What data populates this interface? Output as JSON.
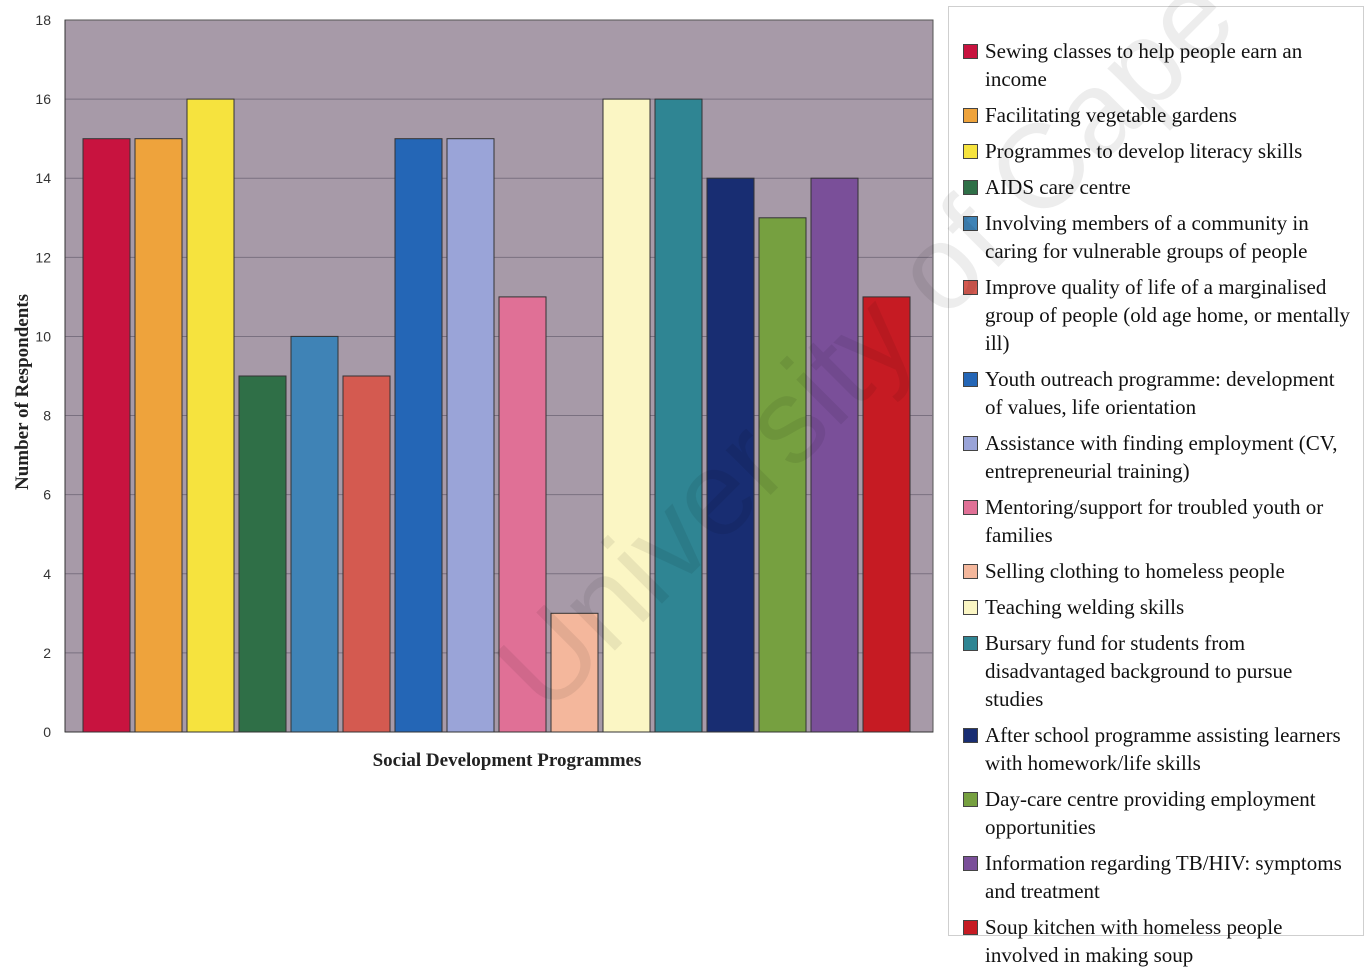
{
  "chart_data": {
    "type": "bar",
    "xlabel": "Social Development Programmes",
    "ylabel": "Number of Respondents",
    "ylim": [
      0,
      18
    ],
    "yticks": [
      0,
      2,
      4,
      6,
      8,
      10,
      12,
      14,
      16,
      18
    ],
    "grid": true,
    "legend_position": "right",
    "plot_background": "#a79aa8",
    "series": [
      {
        "name": "Sewing classes to help people earn an income",
        "value": 15,
        "color": "#c8133f"
      },
      {
        "name": "Facilitating vegetable gardens",
        "value": 15,
        "color": "#eea33c"
      },
      {
        "name": "Programmes to develop literacy skills",
        "value": 16,
        "color": "#f6e33e"
      },
      {
        "name": "AIDS care centre",
        "value": 9,
        "color": "#2f6f47"
      },
      {
        "name": "Involving members of a community in caring for vulnerable groups of people",
        "value": 10,
        "color": "#3f83b6"
      },
      {
        "name": "Improve quality of life of a marginalised group of people (old age home, or mentally ill)",
        "value": 9,
        "color": "#d45a50"
      },
      {
        "name": "Youth outreach programme: development of values, life orientation",
        "value": 15,
        "color": "#2466b6"
      },
      {
        "name": "Assistance with finding employment (CV, entrepreneurial training)",
        "value": 15,
        "color": "#9aa4d8"
      },
      {
        "name": "Mentoring/support for troubled youth or families",
        "value": 11,
        "color": "#e07096"
      },
      {
        "name": "Selling clothing to homeless people",
        "value": 3,
        "color": "#f4b79c"
      },
      {
        "name": "Teaching welding skills",
        "value": 16,
        "color": "#fbf6c4"
      },
      {
        "name": "Bursary fund for students from disadvantaged background to pursue studies",
        "value": 16,
        "color": "#2f8593"
      },
      {
        "name": "After school programme assisting learners with homework/life skills",
        "value": 14,
        "color": "#182d72"
      },
      {
        "name": "Day-care centre providing employment opportunities",
        "value": 13,
        "color": "#76a040"
      },
      {
        "name": "Information regarding TB/HIV: symptoms and treatment",
        "value": 14,
        "color": "#7a4f99"
      },
      {
        "name": "Soup kitchen with homeless people involved in making soup",
        "value": 11,
        "color": "#c61b23"
      }
    ]
  },
  "watermark": "University of Cape Town"
}
